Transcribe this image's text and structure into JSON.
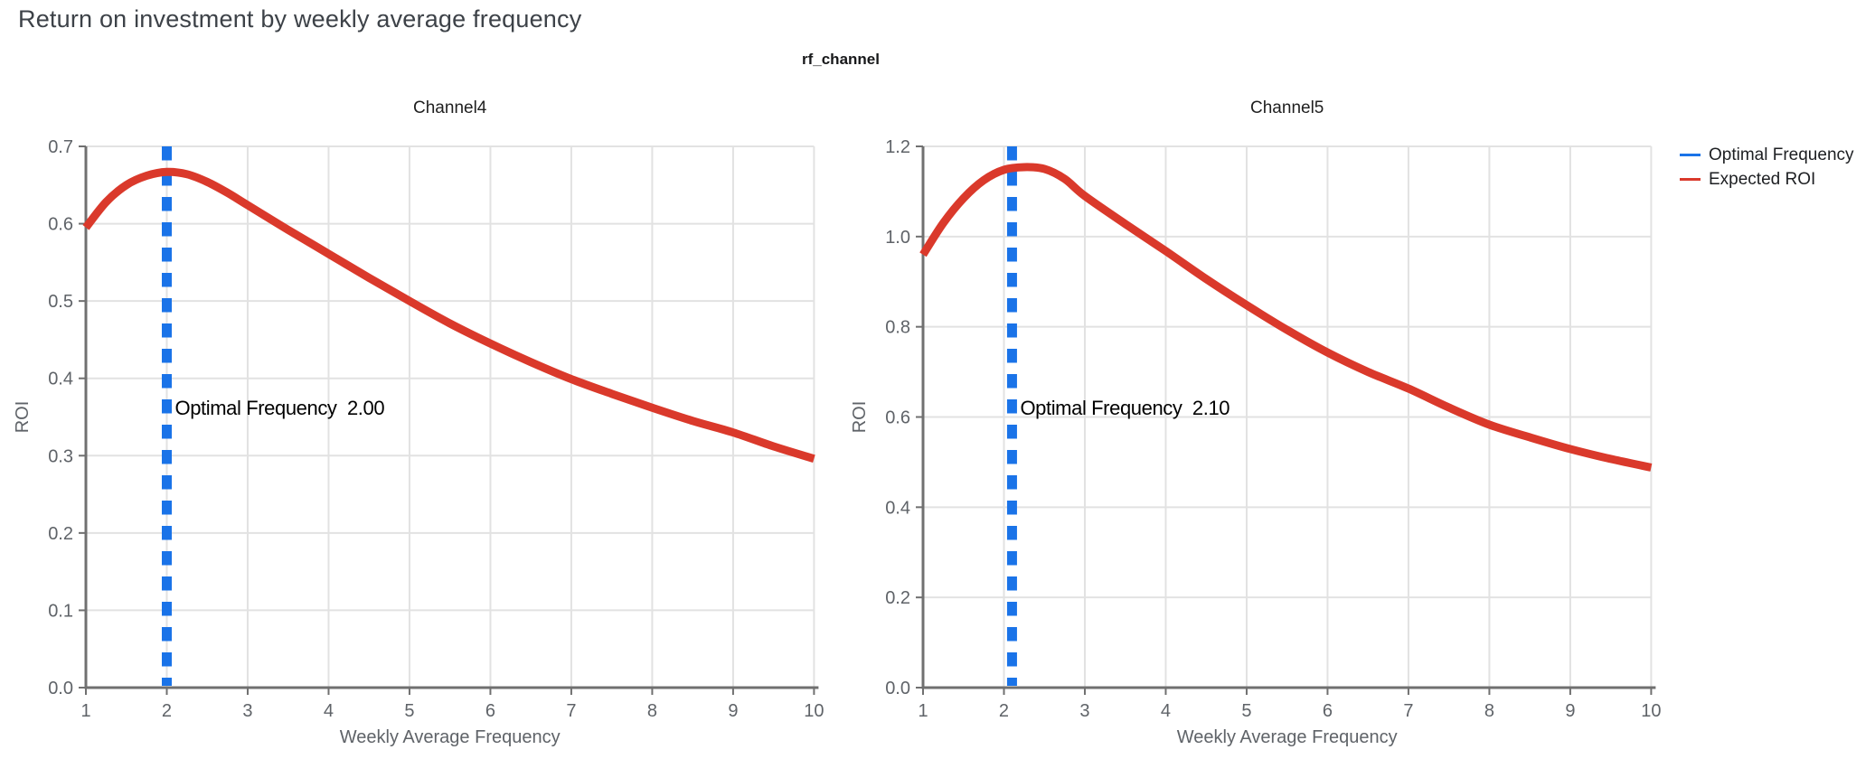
{
  "page_title": "Return on investment by weekly average frequency",
  "facet_title": "rf_channel",
  "legend": {
    "items": [
      {
        "label": "Optimal Frequency",
        "color": "#1A73E8"
      },
      {
        "label": "Expected ROI",
        "color": "#DA392B"
      }
    ]
  },
  "style": {
    "curve_color": "#DA392B",
    "vline_color": "#1A73E8",
    "grid_color": "#E2E2E2",
    "axis_color": "#707070",
    "tick_label_color": "#5F6368",
    "axis_title_color": "#5F6368",
    "panel_title_color": "#1f1f1f",
    "annotation_color": "#000000"
  },
  "chart_data": [
    {
      "type": "line",
      "title": "Channel4",
      "xlabel": "Weekly Average Frequency",
      "ylabel": "ROI",
      "xlim": [
        1,
        10
      ],
      "ylim": [
        0.0,
        0.7
      ],
      "xticks": [
        1,
        2,
        3,
        4,
        5,
        6,
        7,
        8,
        9,
        10
      ],
      "xticklabels": [
        "1",
        "2",
        "3",
        "4",
        "5",
        "6",
        "7",
        "8",
        "9",
        "10"
      ],
      "yticks": [
        0.0,
        0.1,
        0.2,
        0.3,
        0.4,
        0.5,
        0.6,
        0.7
      ],
      "yticklabels": [
        "0.0",
        "0.1",
        "0.2",
        "0.3",
        "0.4",
        "0.5",
        "0.6",
        "0.7"
      ],
      "grid": true,
      "series": [
        {
          "name": "Expected ROI",
          "x": [
            1,
            1.25,
            1.5,
            1.75,
            2,
            2.25,
            2.5,
            2.75,
            3,
            3.5,
            4,
            4.5,
            5,
            5.5,
            6,
            6.5,
            7,
            7.5,
            8,
            8.5,
            9,
            9.5,
            10
          ],
          "y": [
            0.595,
            0.628,
            0.65,
            0.662,
            0.667,
            0.664,
            0.654,
            0.64,
            0.624,
            0.592,
            0.561,
            0.53,
            0.5,
            0.471,
            0.445,
            0.421,
            0.399,
            0.38,
            0.362,
            0.345,
            0.33,
            0.312,
            0.296
          ]
        }
      ],
      "vline": {
        "name": "Optimal Frequency",
        "x": 2.0,
        "value_label": "2.00"
      }
    },
    {
      "type": "line",
      "title": "Channel5",
      "xlabel": "Weekly Average Frequency",
      "ylabel": "ROI",
      "xlim": [
        1,
        10
      ],
      "ylim": [
        0.0,
        1.2
      ],
      "xticks": [
        1,
        2,
        3,
        4,
        5,
        6,
        7,
        8,
        9,
        10
      ],
      "xticklabels": [
        "1",
        "2",
        "3",
        "4",
        "5",
        "6",
        "7",
        "8",
        "9",
        "10"
      ],
      "yticks": [
        0.0,
        0.2,
        0.4,
        0.6,
        0.8,
        1.0,
        1.2
      ],
      "yticklabels": [
        "0.0",
        "0.2",
        "0.4",
        "0.6",
        "0.8",
        "1.0",
        "1.2"
      ],
      "grid": true,
      "series": [
        {
          "name": "Expected ROI",
          "x": [
            1,
            1.25,
            1.5,
            1.75,
            2,
            2.25,
            2.5,
            2.75,
            3,
            3.5,
            4,
            4.5,
            5,
            5.5,
            6,
            6.5,
            7,
            7.5,
            8,
            8.5,
            9,
            9.5,
            10
          ],
          "y": [
            0.96,
            1.03,
            1.085,
            1.125,
            1.148,
            1.154,
            1.15,
            1.128,
            1.09,
            1.028,
            0.968,
            0.906,
            0.848,
            0.793,
            0.743,
            0.7,
            0.663,
            0.621,
            0.583,
            0.555,
            0.529,
            0.507,
            0.488
          ]
        }
      ],
      "vline": {
        "name": "Optimal Frequency",
        "x": 2.1,
        "value_label": "2.10"
      }
    }
  ]
}
